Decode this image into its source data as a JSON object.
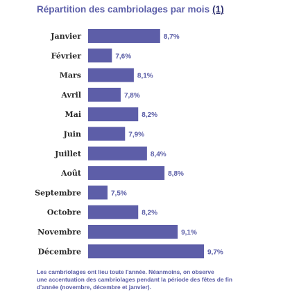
{
  "title": {
    "text": "Répartition des cambriolages par mois",
    "note_link": "(1)"
  },
  "colors": {
    "bar": "#5d5ea8",
    "title": "#5c5fa9",
    "value_label": "#5a5da6",
    "category_label": "#2a2a2a"
  },
  "chart_data": {
    "type": "bar",
    "orientation": "horizontal",
    "categories": [
      "Janvier",
      "Février",
      "Mars",
      "Avril",
      "Mai",
      "Juin",
      "Juillet",
      "Août",
      "Septembre",
      "Octobre",
      "Novembre",
      "Décembre"
    ],
    "values": [
      8.7,
      7.6,
      8.1,
      7.8,
      8.2,
      7.9,
      8.4,
      8.8,
      7.5,
      8.2,
      9.1,
      9.7
    ],
    "value_labels": [
      "8,7%",
      "7,6%",
      "8,1%",
      "7,8%",
      "8,2%",
      "7,9%",
      "8,4%",
      "8,8%",
      "7,5%",
      "8,2%",
      "9,1%",
      "9,7%"
    ],
    "unit": "%",
    "title": "Répartition des cambriolages par mois",
    "xlabel": "",
    "ylabel": "",
    "grid": false,
    "legend": "none"
  },
  "footnote": {
    "lines": [
      "Les cambriolages ont lieu toute l'année. Néanmoins, on observe",
      "une accentuation des cambriolages pendant la période des fêtes de fin",
      "d'année (novembre, décembre et janvier)."
    ]
  }
}
